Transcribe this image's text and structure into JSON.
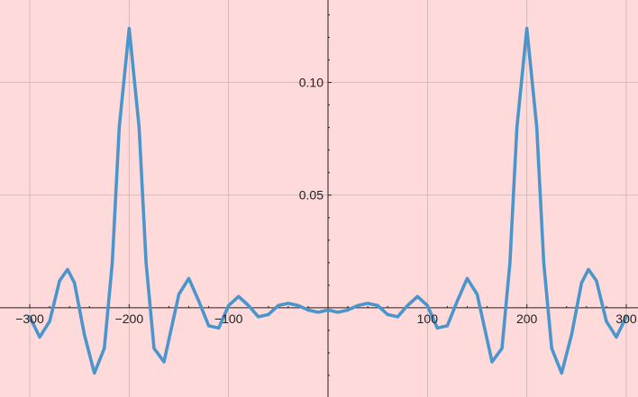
{
  "chart_data": {
    "type": "line",
    "title": "",
    "xlabel": "",
    "ylabel": "",
    "xlim": [
      -310,
      310
    ],
    "ylim": [
      -0.038,
      0.135
    ],
    "grid": true,
    "background_color": "#ffdada",
    "grid_color": "#c9b3b3",
    "x_ticks": [
      {
        "value": -300,
        "label": "−300"
      },
      {
        "value": -200,
        "label": "−200"
      },
      {
        "value": -100,
        "label": "−100"
      },
      {
        "value": 100,
        "label": "100"
      },
      {
        "value": 200,
        "label": "200"
      },
      {
        "value": 300,
        "label": "300"
      }
    ],
    "y_ticks": [
      {
        "value": 0.05,
        "label": "0.05"
      },
      {
        "value": 0.1,
        "label": "0.10"
      }
    ],
    "series": [
      {
        "color": "#4a96cc",
        "x": [
          -300,
          -290,
          -280,
          -270,
          -262,
          -255,
          -245,
          -235,
          -225,
          -217,
          -210,
          -200,
          -190,
          -183,
          -175,
          -165,
          -158,
          -150,
          -140,
          -130,
          -120,
          -110,
          -100,
          -90,
          -80,
          -70,
          -60,
          -50,
          -40,
          -30,
          -20,
          -10,
          0,
          10,
          20,
          30,
          40,
          50,
          60,
          70,
          80,
          90,
          100,
          110,
          120,
          130,
          140,
          150,
          158,
          165,
          175,
          183,
          190,
          200,
          210,
          217,
          225,
          235,
          245,
          255,
          262,
          270,
          280,
          290,
          300
        ],
        "y": [
          -0.004,
          -0.013,
          -0.006,
          0.012,
          0.017,
          0.011,
          -0.012,
          -0.029,
          -0.018,
          0.02,
          0.08,
          0.124,
          0.08,
          0.02,
          -0.018,
          -0.024,
          -0.01,
          0.006,
          0.013,
          0.003,
          -0.008,
          -0.009,
          0.001,
          0.005,
          0.001,
          -0.004,
          -0.003,
          0.001,
          0.002,
          0.001,
          -0.001,
          -0.002,
          -0.001,
          -0.002,
          -0.001,
          0.001,
          0.002,
          0.001,
          -0.003,
          -0.004,
          0.001,
          0.005,
          0.001,
          -0.009,
          -0.008,
          0.003,
          0.013,
          0.006,
          -0.01,
          -0.024,
          -0.018,
          0.02,
          0.08,
          0.124,
          0.08,
          0.02,
          -0.018,
          -0.029,
          -0.012,
          0.011,
          0.017,
          0.012,
          -0.006,
          -0.013,
          -0.004
        ]
      }
    ]
  }
}
